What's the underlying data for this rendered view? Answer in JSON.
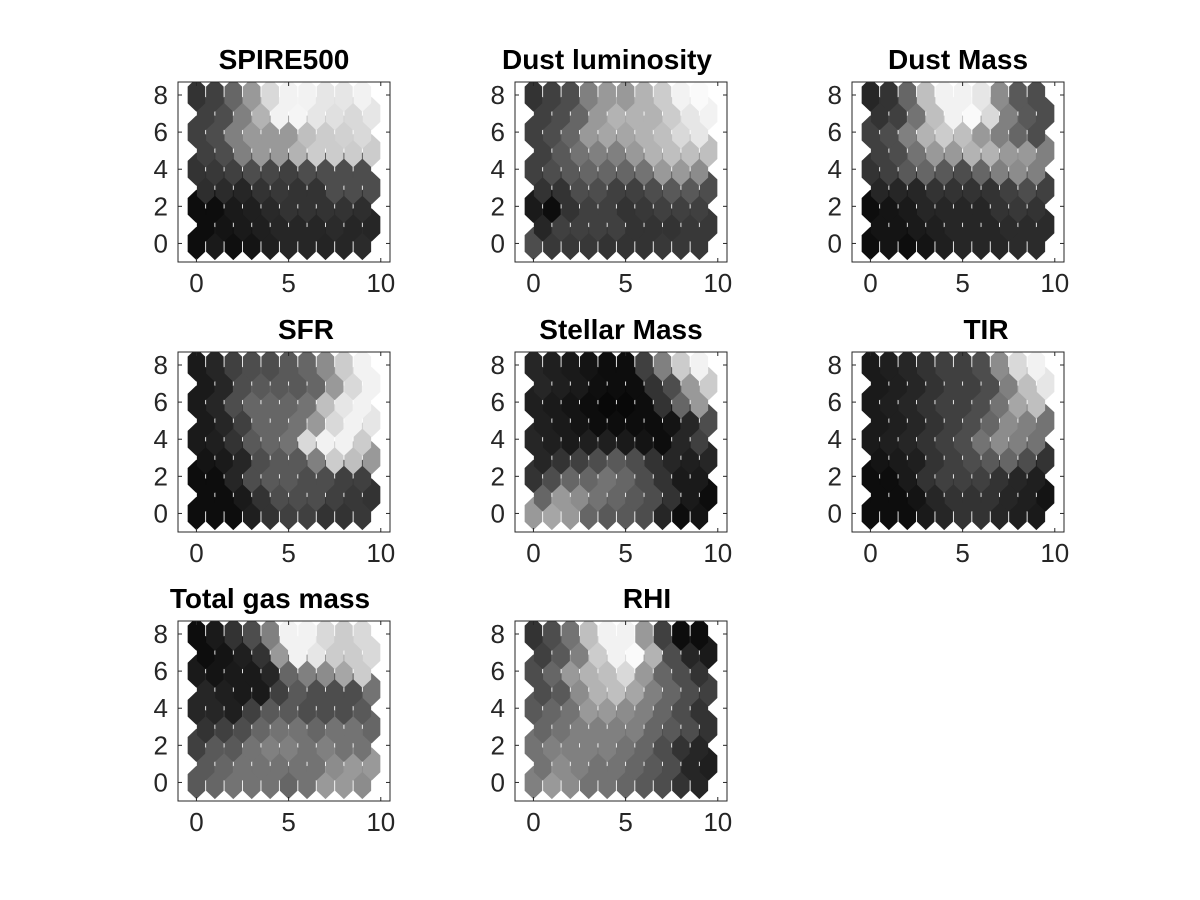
{
  "chart_data": [
    {
      "type": "heatmap",
      "title": "SPIRE500",
      "xlim": [
        -1,
        10.5
      ],
      "ylim": [
        -1,
        8.7
      ],
      "xticks": [
        "0",
        "5",
        "10"
      ],
      "yticks": [
        "0",
        "2",
        "4",
        "6",
        "8"
      ],
      "grid_cols": 10,
      "grid_rows": 9,
      "colormap": "gray",
      "values": [
        [
          0.05,
          0.1,
          0.06,
          0.08,
          0.12,
          0.15,
          0.15,
          0.14,
          0.15,
          0.17
        ],
        [
          0.05,
          0.08,
          0.1,
          0.12,
          0.15,
          0.15,
          0.15,
          0.17,
          0.15,
          0.15
        ],
        [
          0.05,
          0.05,
          0.1,
          0.12,
          0.16,
          0.2,
          0.2,
          0.2,
          0.2,
          0.18
        ],
        [
          0.18,
          0.17,
          0.15,
          0.2,
          0.22,
          0.2,
          0.2,
          0.3,
          0.3,
          0.3
        ],
        [
          0.2,
          0.22,
          0.25,
          0.3,
          0.28,
          0.25,
          0.3,
          0.3,
          0.3,
          0.3
        ],
        [
          0.25,
          0.3,
          0.5,
          0.6,
          0.6,
          0.7,
          0.8,
          0.8,
          0.8,
          0.8
        ],
        [
          0.25,
          0.3,
          0.5,
          0.6,
          0.6,
          0.6,
          0.75,
          0.8,
          0.82,
          0.85
        ],
        [
          0.25,
          0.3,
          0.5,
          0.7,
          0.95,
          0.96,
          0.9,
          0.88,
          0.85,
          0.9
        ],
        [
          0.2,
          0.25,
          0.4,
          0.6,
          0.85,
          0.95,
          0.95,
          0.9,
          0.9,
          0.95
        ]
      ]
    },
    {
      "type": "heatmap",
      "title": "Dust luminosity",
      "xlim": [
        -1,
        10.5
      ],
      "ylim": [
        -1,
        8.7
      ],
      "xticks": [
        "0",
        "5",
        "10"
      ],
      "yticks": [
        "0",
        "2",
        "4",
        "6",
        "8"
      ],
      "grid_cols": 10,
      "grid_rows": 9,
      "colormap": "gray",
      "values": [
        [
          0.3,
          0.22,
          0.22,
          0.22,
          0.2,
          0.2,
          0.2,
          0.22,
          0.22,
          0.22
        ],
        [
          0.15,
          0.25,
          0.25,
          0.25,
          0.25,
          0.2,
          0.2,
          0.2,
          0.22,
          0.22
        ],
        [
          0.1,
          0.05,
          0.2,
          0.25,
          0.25,
          0.2,
          0.22,
          0.25,
          0.25,
          0.25
        ],
        [
          0.2,
          0.2,
          0.3,
          0.3,
          0.25,
          0.25,
          0.3,
          0.35,
          0.35,
          0.3
        ],
        [
          0.25,
          0.3,
          0.35,
          0.4,
          0.4,
          0.4,
          0.45,
          0.6,
          0.6,
          0.55
        ],
        [
          0.25,
          0.35,
          0.45,
          0.5,
          0.5,
          0.6,
          0.7,
          0.75,
          0.75,
          0.75
        ],
        [
          0.25,
          0.3,
          0.4,
          0.6,
          0.65,
          0.65,
          0.7,
          0.75,
          0.85,
          0.9
        ],
        [
          0.25,
          0.3,
          0.4,
          0.6,
          0.7,
          0.7,
          0.7,
          0.8,
          0.9,
          0.95
        ],
        [
          0.2,
          0.25,
          0.3,
          0.5,
          0.6,
          0.6,
          0.7,
          0.8,
          0.95,
          0.98
        ]
      ]
    },
    {
      "type": "heatmap",
      "title": "Dust Mass",
      "xlim": [
        -1,
        10.5
      ],
      "ylim": [
        -1,
        8.7
      ],
      "xticks": [
        "0",
        "5",
        "10"
      ],
      "yticks": [
        "0",
        "2",
        "4",
        "6",
        "8"
      ],
      "grid_cols": 10,
      "grid_rows": 9,
      "colormap": "gray",
      "values": [
        [
          0.05,
          0.08,
          0.05,
          0.08,
          0.12,
          0.15,
          0.15,
          0.15,
          0.17,
          0.17
        ],
        [
          0.08,
          0.08,
          0.1,
          0.12,
          0.15,
          0.15,
          0.15,
          0.17,
          0.17,
          0.17
        ],
        [
          0.05,
          0.08,
          0.1,
          0.15,
          0.15,
          0.15,
          0.15,
          0.2,
          0.22,
          0.2
        ],
        [
          0.15,
          0.15,
          0.15,
          0.2,
          0.2,
          0.2,
          0.2,
          0.25,
          0.3,
          0.25
        ],
        [
          0.2,
          0.25,
          0.35,
          0.4,
          0.35,
          0.3,
          0.4,
          0.5,
          0.55,
          0.5
        ],
        [
          0.25,
          0.3,
          0.45,
          0.6,
          0.6,
          0.7,
          0.7,
          0.6,
          0.6,
          0.5
        ],
        [
          0.25,
          0.3,
          0.5,
          0.7,
          0.8,
          0.75,
          0.6,
          0.5,
          0.4,
          0.3
        ],
        [
          0.2,
          0.25,
          0.45,
          0.75,
          0.95,
          0.98,
          0.85,
          0.5,
          0.35,
          0.3
        ],
        [
          0.15,
          0.2,
          0.4,
          0.75,
          0.95,
          0.95,
          0.9,
          0.55,
          0.35,
          0.3
        ]
      ]
    },
    {
      "type": "heatmap",
      "title": "SFR",
      "xlim": [
        -1,
        10.5
      ],
      "ylim": [
        -1,
        8.7
      ],
      "xticks": [
        "0",
        "5",
        "10"
      ],
      "yticks": [
        "0",
        "2",
        "4",
        "6",
        "8"
      ],
      "grid_cols": 10,
      "grid_rows": 9,
      "colormap": "gray",
      "values": [
        [
          0.05,
          0.05,
          0.05,
          0.12,
          0.2,
          0.25,
          0.25,
          0.2,
          0.2,
          0.22
        ],
        [
          0.05,
          0.05,
          0.1,
          0.2,
          0.3,
          0.3,
          0.3,
          0.25,
          0.22,
          0.2
        ],
        [
          0.05,
          0.05,
          0.15,
          0.3,
          0.35,
          0.35,
          0.3,
          0.3,
          0.25,
          0.25
        ],
        [
          0.08,
          0.1,
          0.15,
          0.3,
          0.35,
          0.35,
          0.5,
          0.8,
          0.75,
          0.6
        ],
        [
          0.1,
          0.12,
          0.2,
          0.35,
          0.4,
          0.45,
          0.85,
          0.95,
          0.95,
          0.8
        ],
        [
          0.1,
          0.15,
          0.25,
          0.4,
          0.4,
          0.45,
          0.6,
          0.85,
          0.95,
          0.9
        ],
        [
          0.1,
          0.15,
          0.3,
          0.4,
          0.4,
          0.4,
          0.45,
          0.75,
          0.9,
          0.95
        ],
        [
          0.1,
          0.15,
          0.3,
          0.35,
          0.35,
          0.35,
          0.4,
          0.6,
          0.85,
          0.95
        ],
        [
          0.1,
          0.15,
          0.25,
          0.3,
          0.3,
          0.35,
          0.4,
          0.55,
          0.8,
          0.95
        ]
      ]
    },
    {
      "type": "heatmap",
      "title": "Stellar Mass",
      "xlim": [
        -1,
        10.5
      ],
      "ylim": [
        -1,
        8.7
      ],
      "xticks": [
        "0",
        "5",
        "10"
      ],
      "yticks": [
        "0",
        "2",
        "4",
        "6",
        "8"
      ],
      "grid_cols": 10,
      "grid_rows": 9,
      "colormap": "gray",
      "values": [
        [
          0.6,
          0.65,
          0.6,
          0.4,
          0.35,
          0.35,
          0.3,
          0.15,
          0.05,
          0.08
        ],
        [
          0.4,
          0.6,
          0.55,
          0.45,
          0.4,
          0.35,
          0.3,
          0.2,
          0.1,
          0.05
        ],
        [
          0.2,
          0.3,
          0.4,
          0.4,
          0.45,
          0.4,
          0.3,
          0.2,
          0.1,
          0.1
        ],
        [
          0.15,
          0.2,
          0.25,
          0.3,
          0.35,
          0.3,
          0.2,
          0.15,
          0.12,
          0.15
        ],
        [
          0.15,
          0.12,
          0.1,
          0.12,
          0.12,
          0.1,
          0.08,
          0.05,
          0.15,
          0.25
        ],
        [
          0.12,
          0.1,
          0.08,
          0.05,
          0.05,
          0.05,
          0.05,
          0.08,
          0.15,
          0.3
        ],
        [
          0.12,
          0.1,
          0.08,
          0.05,
          0.03,
          0.03,
          0.05,
          0.2,
          0.4,
          0.6
        ],
        [
          0.15,
          0.12,
          0.1,
          0.06,
          0.05,
          0.05,
          0.2,
          0.3,
          0.6,
          0.8
        ],
        [
          0.15,
          0.12,
          0.1,
          0.08,
          0.05,
          0.05,
          0.25,
          0.5,
          0.8,
          0.95
        ]
      ]
    },
    {
      "type": "heatmap",
      "title": "TIR",
      "xlim": [
        -1,
        10.5
      ],
      "ylim": [
        -1,
        8.7
      ],
      "xticks": [
        "0",
        "5",
        "10"
      ],
      "yticks": [
        "0",
        "2",
        "4",
        "6",
        "8"
      ],
      "grid_cols": 10,
      "grid_rows": 9,
      "colormap": "gray",
      "values": [
        [
          0.05,
          0.05,
          0.05,
          0.1,
          0.15,
          0.2,
          0.2,
          0.15,
          0.12,
          0.1
        ],
        [
          0.05,
          0.05,
          0.08,
          0.15,
          0.2,
          0.2,
          0.2,
          0.15,
          0.12,
          0.08
        ],
        [
          0.05,
          0.05,
          0.1,
          0.2,
          0.25,
          0.25,
          0.25,
          0.2,
          0.15,
          0.12
        ],
        [
          0.08,
          0.1,
          0.12,
          0.2,
          0.25,
          0.3,
          0.35,
          0.4,
          0.3,
          0.2
        ],
        [
          0.1,
          0.12,
          0.15,
          0.2,
          0.25,
          0.3,
          0.45,
          0.55,
          0.5,
          0.45
        ],
        [
          0.1,
          0.12,
          0.15,
          0.2,
          0.25,
          0.3,
          0.4,
          0.55,
          0.5,
          0.45
        ],
        [
          0.1,
          0.12,
          0.15,
          0.2,
          0.25,
          0.25,
          0.3,
          0.45,
          0.65,
          0.75
        ],
        [
          0.1,
          0.12,
          0.15,
          0.2,
          0.25,
          0.25,
          0.3,
          0.5,
          0.75,
          0.9
        ],
        [
          0.1,
          0.12,
          0.15,
          0.2,
          0.25,
          0.25,
          0.3,
          0.55,
          0.85,
          0.95
        ]
      ]
    },
    {
      "type": "heatmap",
      "title": "Total gas mass",
      "xlim": [
        -1,
        10.5
      ],
      "ylim": [
        -1,
        8.7
      ],
      "xticks": [
        "0",
        "5",
        "10"
      ],
      "yticks": [
        "0",
        "2",
        "4",
        "6",
        "8"
      ],
      "grid_cols": 10,
      "grid_rows": 9,
      "colormap": "gray",
      "values": [
        [
          0.35,
          0.4,
          0.45,
          0.45,
          0.45,
          0.4,
          0.45,
          0.6,
          0.6,
          0.55
        ],
        [
          0.35,
          0.4,
          0.45,
          0.45,
          0.45,
          0.45,
          0.45,
          0.55,
          0.6,
          0.6
        ],
        [
          0.25,
          0.35,
          0.35,
          0.45,
          0.5,
          0.5,
          0.45,
          0.5,
          0.45,
          0.45
        ],
        [
          0.2,
          0.25,
          0.3,
          0.4,
          0.45,
          0.45,
          0.4,
          0.45,
          0.45,
          0.4
        ],
        [
          0.15,
          0.15,
          0.12,
          0.25,
          0.35,
          0.35,
          0.3,
          0.3,
          0.3,
          0.35
        ],
        [
          0.15,
          0.12,
          0.1,
          0.1,
          0.25,
          0.35,
          0.3,
          0.3,
          0.3,
          0.45
        ],
        [
          0.1,
          0.08,
          0.1,
          0.1,
          0.15,
          0.4,
          0.5,
          0.55,
          0.65,
          0.8
        ],
        [
          0.05,
          0.08,
          0.12,
          0.2,
          0.6,
          0.95,
          0.9,
          0.8,
          0.8,
          0.85
        ],
        [
          0.05,
          0.1,
          0.2,
          0.3,
          0.5,
          0.95,
          0.95,
          0.85,
          0.8,
          0.85
        ]
      ]
    },
    {
      "type": "heatmap",
      "title": "RHI",
      "xlim": [
        -1,
        10.5
      ],
      "ylim": [
        -1,
        8.7
      ],
      "xticks": [
        "0",
        "5",
        "10"
      ],
      "yticks": [
        "0",
        "2",
        "4",
        "6",
        "8"
      ],
      "grid_cols": 10,
      "grid_rows": 9,
      "colormap": "gray",
      "values": [
        [
          0.5,
          0.6,
          0.55,
          0.45,
          0.45,
          0.4,
          0.35,
          0.3,
          0.2,
          0.15
        ],
        [
          0.45,
          0.55,
          0.5,
          0.45,
          0.45,
          0.4,
          0.35,
          0.3,
          0.15,
          0.12
        ],
        [
          0.45,
          0.5,
          0.5,
          0.5,
          0.5,
          0.45,
          0.4,
          0.3,
          0.2,
          0.15
        ],
        [
          0.4,
          0.45,
          0.5,
          0.5,
          0.5,
          0.5,
          0.4,
          0.35,
          0.3,
          0.2
        ],
        [
          0.35,
          0.4,
          0.45,
          0.6,
          0.6,
          0.55,
          0.5,
          0.4,
          0.3,
          0.2
        ],
        [
          0.3,
          0.35,
          0.55,
          0.7,
          0.75,
          0.65,
          0.5,
          0.4,
          0.3,
          0.25
        ],
        [
          0.3,
          0.4,
          0.6,
          0.7,
          0.75,
          0.85,
          0.6,
          0.4,
          0.3,
          0.2
        ],
        [
          0.25,
          0.35,
          0.5,
          0.8,
          0.95,
          0.98,
          0.7,
          0.3,
          0.15,
          0.1
        ],
        [
          0.2,
          0.3,
          0.45,
          0.75,
          0.95,
          0.95,
          0.6,
          0.25,
          0.05,
          0.05
        ]
      ]
    }
  ]
}
